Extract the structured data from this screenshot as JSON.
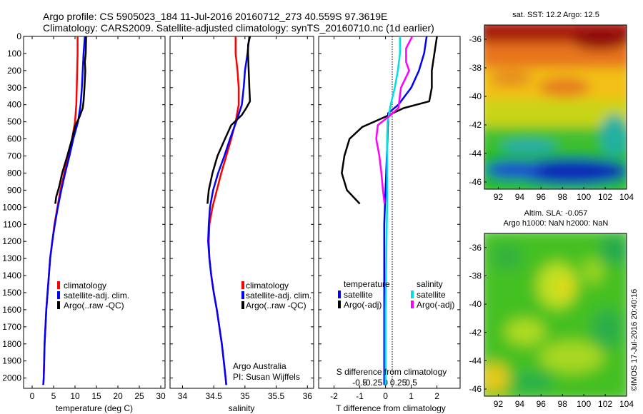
{
  "titles": {
    "line1": "Argo profile: CS 5905023_184 11-Jul-2016 20160712_273 40.559S 97.3619E",
    "line2": "Climatology: CARS2009. Satellite-adjusted climatology: synTS_20160710.nc (1d earlier)"
  },
  "colors": {
    "climatology": "#ff0000",
    "satellite": "#0000ff",
    "argo": "#000000",
    "salinity_satellite": "#00e0e0",
    "salinity_argo": "#ff00ff"
  },
  "chart_data": [
    {
      "type": "line",
      "xlabel": "temperature (deg C)",
      "xlim": [
        -2,
        31
      ],
      "ylim": [
        2060,
        0
      ],
      "xticks": [
        0,
        5,
        10,
        15,
        20,
        25,
        30
      ],
      "yticks": [
        0,
        100,
        200,
        300,
        400,
        500,
        600,
        700,
        800,
        900,
        1000,
        1100,
        1200,
        1300,
        1400,
        1500,
        1600,
        1700,
        1800,
        1900,
        2000
      ],
      "legend": [
        "climatology",
        "satellite-adj. clim.",
        "Argo(..raw -QC)"
      ],
      "series": [
        {
          "name": "climatology",
          "color": "#ff0000",
          "points": [
            [
              10.6,
              0
            ],
            [
              10.6,
              100
            ],
            [
              10.5,
              200
            ],
            [
              10.4,
              300
            ],
            [
              10.3,
              400
            ],
            [
              10.0,
              500
            ],
            [
              9.3,
              600
            ],
            [
              8.4,
              700
            ],
            [
              7.5,
              800
            ],
            [
              6.6,
              900
            ],
            [
              5.9,
              1000
            ],
            [
              5.2,
              1100
            ],
            [
              4.7,
              1200
            ],
            [
              4.2,
              1300
            ],
            [
              3.9,
              1400
            ],
            [
              3.6,
              1500
            ],
            [
              3.3,
              1600
            ],
            [
              3.1,
              1700
            ],
            [
              2.9,
              1800
            ],
            [
              2.8,
              1900
            ],
            [
              2.7,
              2000
            ],
            [
              2.6,
              2040
            ]
          ]
        },
        {
          "name": "satellite-adj. clim.",
          "color": "#0000ff",
          "points": [
            [
              12.3,
              0
            ],
            [
              12.0,
              100
            ],
            [
              11.8,
              200
            ],
            [
              11.6,
              300
            ],
            [
              11.3,
              400
            ],
            [
              10.7,
              500
            ],
            [
              9.6,
              600
            ],
            [
              8.7,
              700
            ],
            [
              7.7,
              800
            ],
            [
              6.8,
              900
            ],
            [
              6.0,
              1000
            ],
            [
              5.3,
              1100
            ],
            [
              4.7,
              1200
            ],
            [
              4.2,
              1300
            ],
            [
              3.9,
              1400
            ],
            [
              3.6,
              1500
            ],
            [
              3.3,
              1600
            ],
            [
              3.1,
              1700
            ],
            [
              2.9,
              1800
            ],
            [
              2.8,
              1900
            ],
            [
              2.7,
              2000
            ],
            [
              2.6,
              2040
            ]
          ]
        },
        {
          "name": "Argo(..raw -QC)",
          "color": "#000000",
          "points": [
            [
              12.6,
              0
            ],
            [
              12.5,
              100
            ],
            [
              12.3,
              150
            ],
            [
              12.4,
              200
            ],
            [
              12.2,
              300
            ],
            [
              12.0,
              380
            ],
            [
              11.8,
              420
            ],
            [
              10.9,
              480
            ],
            [
              10.1,
              520
            ],
            [
              9.3,
              600
            ],
            [
              8.2,
              700
            ],
            [
              7.0,
              800
            ],
            [
              6.3,
              880
            ],
            [
              5.6,
              940
            ],
            [
              5.4,
              980
            ]
          ]
        }
      ]
    },
    {
      "type": "line",
      "xlabel": "salinity",
      "xlim": [
        33.8,
        36.1
      ],
      "ylim": [
        2060,
        0
      ],
      "xticks": [
        34,
        34.5,
        35,
        35.5,
        36
      ],
      "legend": [
        "climatology",
        "satellite-adj. clim.",
        "Argo(..raw -QC)"
      ],
      "annotation": [
        "Argo Australia",
        "PI: Susan Wijffels"
      ],
      "series": [
        {
          "name": "climatology",
          "color": "#ff0000",
          "points": [
            [
              34.85,
              0
            ],
            [
              34.85,
              100
            ],
            [
              34.88,
              200
            ],
            [
              34.9,
              300
            ],
            [
              34.9,
              400
            ],
            [
              34.85,
              500
            ],
            [
              34.78,
              600
            ],
            [
              34.7,
              700
            ],
            [
              34.62,
              800
            ],
            [
              34.55,
              900
            ],
            [
              34.48,
              1000
            ],
            [
              34.43,
              1100
            ],
            [
              34.42,
              1200
            ],
            [
              34.43,
              1300
            ],
            [
              34.46,
              1400
            ],
            [
              34.5,
              1500
            ],
            [
              34.55,
              1600
            ],
            [
              34.59,
              1700
            ],
            [
              34.63,
              1800
            ],
            [
              34.66,
              1900
            ],
            [
              34.69,
              2000
            ],
            [
              34.7,
              2040
            ]
          ]
        },
        {
          "name": "satellite-adj. clim.",
          "color": "#0000ff",
          "points": [
            [
              35.07,
              0
            ],
            [
              35.04,
              100
            ],
            [
              35.0,
              200
            ],
            [
              34.98,
              300
            ],
            [
              34.95,
              400
            ],
            [
              34.86,
              500
            ],
            [
              34.76,
              600
            ],
            [
              34.67,
              700
            ],
            [
              34.57,
              800
            ],
            [
              34.49,
              900
            ],
            [
              34.44,
              1000
            ],
            [
              34.42,
              1100
            ],
            [
              34.41,
              1200
            ],
            [
              34.43,
              1300
            ],
            [
              34.46,
              1400
            ],
            [
              34.5,
              1500
            ],
            [
              34.55,
              1600
            ],
            [
              34.59,
              1700
            ],
            [
              34.63,
              1800
            ],
            [
              34.66,
              1900
            ],
            [
              34.69,
              2000
            ],
            [
              34.7,
              2040
            ]
          ]
        },
        {
          "name": "Argo(..raw -QC)",
          "color": "#000000",
          "points": [
            [
              35.08,
              0
            ],
            [
              35.05,
              50
            ],
            [
              35.05,
              100
            ],
            [
              35.06,
              200
            ],
            [
              35.07,
              300
            ],
            [
              35.08,
              380
            ],
            [
              35.02,
              420
            ],
            [
              34.95,
              460
            ],
            [
              34.78,
              520
            ],
            [
              34.68,
              600
            ],
            [
              34.56,
              700
            ],
            [
              34.48,
              800
            ],
            [
              34.42,
              900
            ],
            [
              34.4,
              980
            ]
          ]
        }
      ]
    },
    {
      "type": "line",
      "xlabel": "T difference from climatology",
      "top_xlabel": "S difference from climatology",
      "xlim": [
        -2.6,
        2.9
      ],
      "ylim": [
        2060,
        0
      ],
      "xticks": [
        -2,
        -1,
        0,
        1,
        2
      ],
      "top_xticks": [
        -0.5,
        -0.25,
        0,
        0.25,
        0.5
      ],
      "legend_groups": [
        "temperature",
        "salinity"
      ],
      "legend": [
        "satellite",
        "Argo(-adj)",
        "satellite",
        "Argo(-adj)"
      ],
      "series": [
        {
          "name": "satellite",
          "group": "temperature",
          "color": "#0000ff",
          "points": [
            [
              1.6,
              0
            ],
            [
              1.5,
              100
            ],
            [
              1.3,
              200
            ],
            [
              1.0,
              300
            ],
            [
              0.5,
              400
            ],
            [
              0.1,
              450
            ],
            [
              0.1,
              500
            ],
            [
              0.05,
              700
            ],
            [
              0.0,
              900
            ],
            [
              -0.05,
              1100
            ],
            [
              -0.05,
              1300
            ],
            [
              -0.05,
              1500
            ],
            [
              -0.05,
              1700
            ],
            [
              -0.05,
              1900
            ],
            [
              -0.05,
              2040
            ]
          ]
        },
        {
          "name": "Argo(-adj)",
          "group": "temperature",
          "color": "#000000",
          "points": [
            [
              2.0,
              0
            ],
            [
              1.9,
              100
            ],
            [
              1.8,
              200
            ],
            [
              1.8,
              300
            ],
            [
              1.7,
              380
            ],
            [
              0.7,
              420
            ],
            [
              0.0,
              470
            ],
            [
              -0.9,
              530
            ],
            [
              -1.4,
              600
            ],
            [
              -1.6,
              700
            ],
            [
              -1.7,
              800
            ],
            [
              -1.5,
              900
            ],
            [
              -1.0,
              980
            ]
          ]
        },
        {
          "name": "satellite",
          "group": "salinity",
          "color": "#00e0e0",
          "points": [
            [
              0.28,
              0
            ],
            [
              0.28,
              100
            ],
            [
              0.24,
              200
            ],
            [
              0.18,
              300
            ],
            [
              0.1,
              400
            ],
            [
              0.04,
              500
            ],
            [
              0.03,
              600
            ],
            [
              0.03,
              800
            ],
            [
              0.03,
              1000
            ],
            [
              0.02,
              1200
            ],
            [
              0.01,
              1400
            ],
            [
              0.0,
              1600
            ],
            [
              0.0,
              1800
            ],
            [
              0.0,
              2040
            ]
          ]
        },
        {
          "name": "Argo(-adj)",
          "group": "salinity",
          "color": "#ff00ff",
          "points": [
            [
              0.52,
              0
            ],
            [
              0.4,
              70
            ],
            [
              0.4,
              150
            ],
            [
              0.46,
              200
            ],
            [
              0.3,
              300
            ],
            [
              0.25,
              420
            ],
            [
              0.1,
              460
            ],
            [
              -0.15,
              520
            ],
            [
              -0.18,
              600
            ],
            [
              -0.12,
              700
            ],
            [
              -0.08,
              800
            ],
            [
              -0.05,
              900
            ],
            [
              -0.02,
              980
            ]
          ]
        }
      ]
    },
    {
      "type": "heatmap",
      "title": "sat. SST: 12.2 Argo: 12.5",
      "xlim": [
        90.7,
        104
      ],
      "ylim": [
        -46.5,
        -35
      ],
      "xticks": [
        92,
        94,
        96,
        98,
        100,
        102,
        104
      ],
      "yticks": [
        -36,
        -38,
        -40,
        -42,
        -44,
        -46
      ]
    },
    {
      "type": "heatmap",
      "title_lines": [
        "Altim. SLA: -0.057",
        "Argo h1000: NaN h2000: NaN"
      ],
      "xlim": [
        90.7,
        104
      ],
      "ylim": [
        -46.5,
        -35
      ],
      "xticks": [
        92,
        94,
        96,
        98,
        100,
        102,
        104
      ],
      "yticks": [
        -36,
        -38,
        -40,
        -42,
        -44,
        -46
      ]
    }
  ],
  "footer": {
    "credit": "©IMOS 17-Jul-2016 20:40:16"
  }
}
